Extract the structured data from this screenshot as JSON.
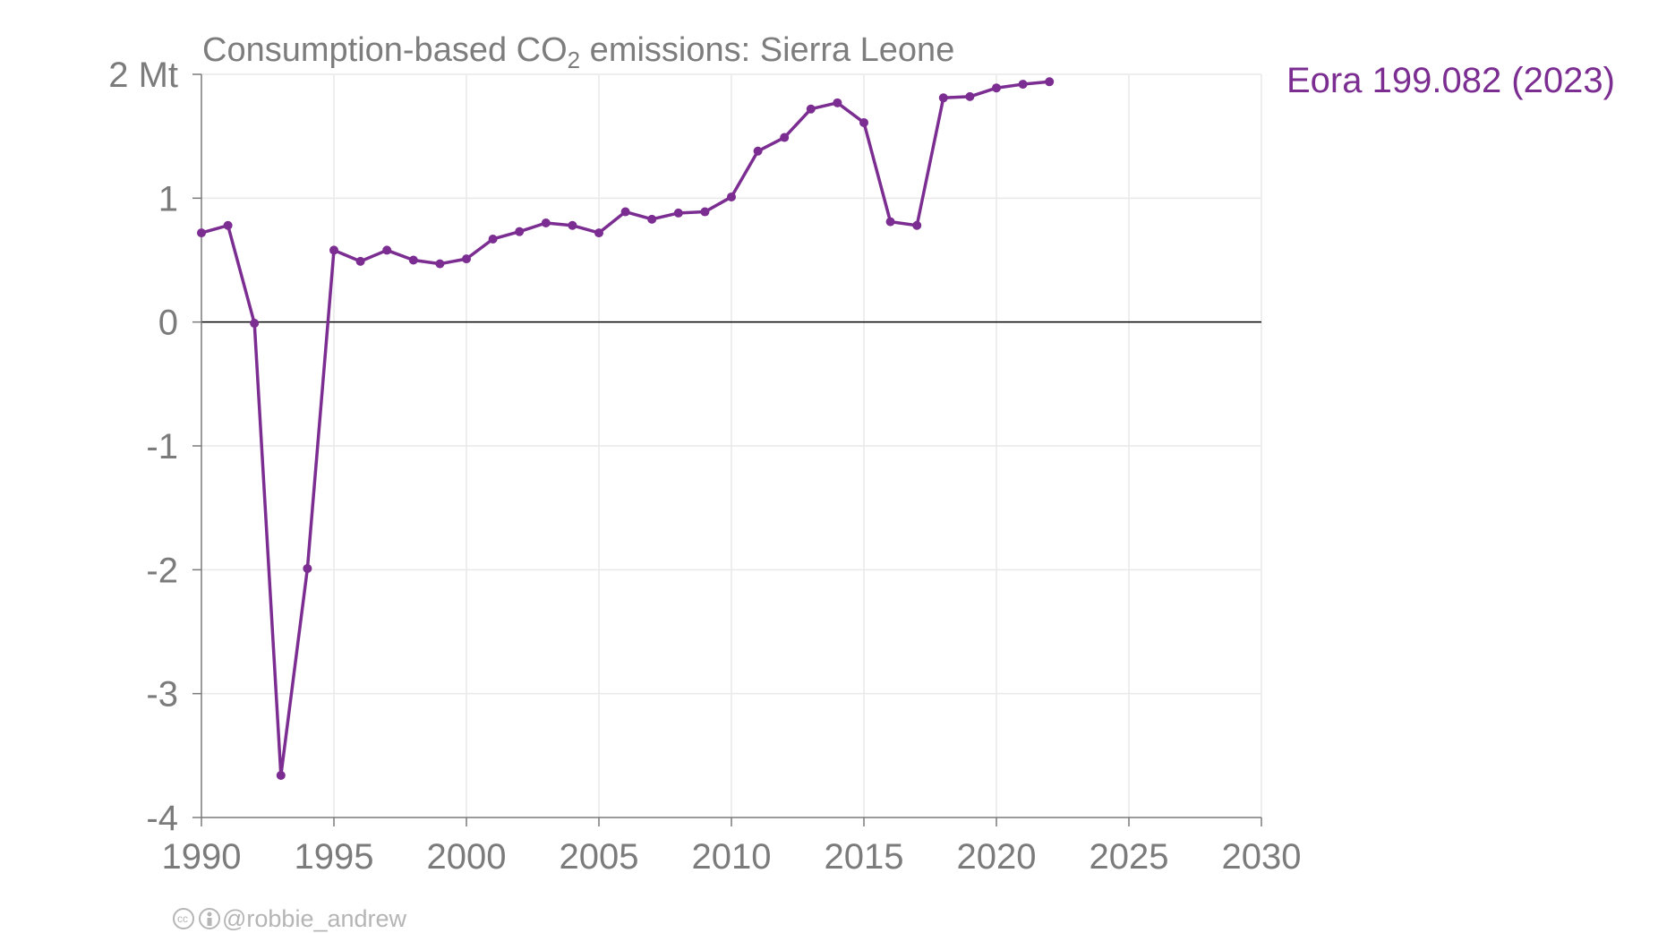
{
  "chart_data": {
    "type": "line",
    "title_prefix": "Consumption-based CO",
    "title_subscript": "2",
    "title_suffix": " emissions: Sierra Leone",
    "y_unit": "Mt",
    "xlim": [
      1990,
      2030
    ],
    "ylim": [
      -4,
      2
    ],
    "x_ticks": [
      1990,
      1995,
      2000,
      2005,
      2010,
      2015,
      2020,
      2025,
      2030
    ],
    "y_ticks": [
      -4,
      -3,
      -2,
      -1,
      0,
      1,
      2
    ],
    "y_tick_labels": [
      "-4",
      "-3",
      "-2",
      "-1",
      "0",
      "1",
      "2 Mt"
    ],
    "grid": true,
    "series": [
      {
        "name": "Eora 199.082 (2023)",
        "color": "#7b2d91",
        "x": [
          1990,
          1991,
          1992,
          1993,
          1994,
          1995,
          1996,
          1997,
          1998,
          1999,
          2000,
          2001,
          2002,
          2003,
          2004,
          2005,
          2006,
          2007,
          2008,
          2009,
          2010,
          2011,
          2012,
          2013,
          2014,
          2015,
          2016,
          2017,
          2018,
          2019,
          2020,
          2021,
          2022
        ],
        "values": [
          0.72,
          0.78,
          -0.01,
          -3.66,
          -1.99,
          0.58,
          0.49,
          0.58,
          0.5,
          0.47,
          0.51,
          0.67,
          0.73,
          0.8,
          0.78,
          0.72,
          0.89,
          0.83,
          0.88,
          0.89,
          1.01,
          1.38,
          1.49,
          1.72,
          1.77,
          1.61,
          0.81,
          0.78,
          1.81,
          1.82,
          1.89,
          1.92,
          1.94
        ]
      }
    ]
  },
  "credit": {
    "cc_icon": "cc-icon",
    "by_icon": "attribution-icon",
    "handle": "@robbie_andrew"
  }
}
